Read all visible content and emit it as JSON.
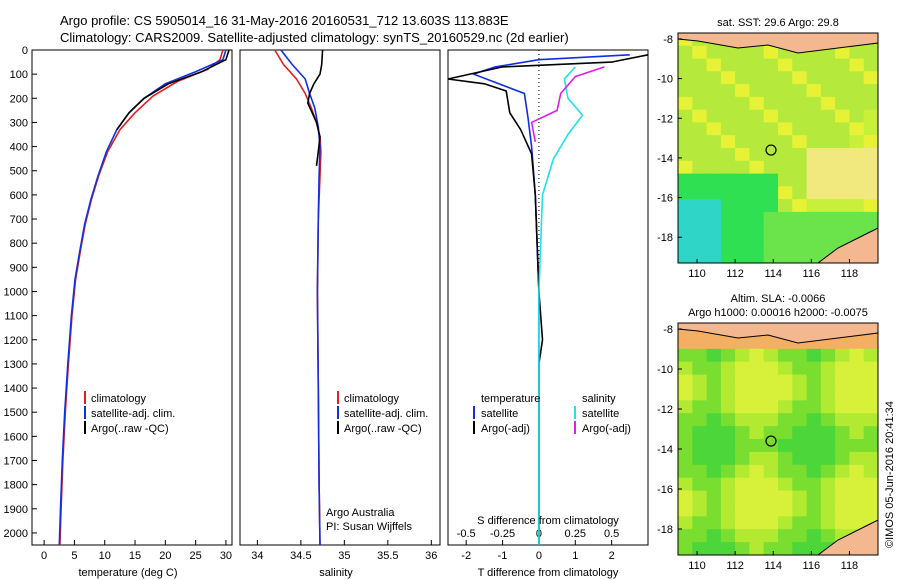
{
  "header": {
    "line1": "Argo profile: CS 5905014_16 31-May-2016 20160531_712 13.603S 113.883E",
    "line2": "Climatology: CARS2009. Satellite-adjusted climatology: synTS_20160529.nc (2d earlier)"
  },
  "colors": {
    "climatology": "#e02020",
    "satellite": "#1030e0",
    "argo": "#000000",
    "sat_s": "#20e0e8",
    "argo_s": "#e020e0"
  },
  "depth_axis": {
    "ticks": [
      "0",
      "100",
      "200",
      "300",
      "400",
      "500",
      "600",
      "700",
      "800",
      "900",
      "1000",
      "1100",
      "1200",
      "1300",
      "1400",
      "1500",
      "1600",
      "1700",
      "1800",
      "1900",
      "2000"
    ]
  },
  "chart_data": [
    {
      "type": "line",
      "name": "temperature",
      "xlabel": "temperature (deg C)",
      "ylabel": "depth",
      "xlim": [
        -2,
        31
      ],
      "ylim": [
        0,
        2050
      ],
      "xticks": [
        0,
        5,
        10,
        15,
        20,
        25,
        30
      ],
      "legend": [
        "climatology",
        "satellite-adj. clim.",
        "Argo(..raw -QC)"
      ],
      "series": [
        {
          "name": "climatology",
          "color": "#e02020",
          "points": [
            [
              29.5,
              0
            ],
            [
              29,
              40
            ],
            [
              27,
              80
            ],
            [
              22,
              130
            ],
            [
              18,
              190
            ],
            [
              15,
              260
            ],
            [
              12.5,
              330
            ],
            [
              10.5,
              420
            ],
            [
              9,
              520
            ],
            [
              7.8,
              620
            ],
            [
              6.8,
              720
            ],
            [
              6,
              830
            ],
            [
              5.2,
              950
            ],
            [
              4.6,
              1100
            ],
            [
              4,
              1300
            ],
            [
              3.5,
              1500
            ],
            [
              3.1,
              1700
            ],
            [
              2.8,
              1900
            ],
            [
              2.6,
              2050
            ]
          ]
        },
        {
          "name": "satellite",
          "color": "#1030e0",
          "points": [
            [
              30,
              0
            ],
            [
              29.5,
              40
            ],
            [
              25,
              90
            ],
            [
              20,
              140
            ],
            [
              16.5,
              200
            ],
            [
              14,
              260
            ],
            [
              12,
              330
            ],
            [
              10.3,
              420
            ],
            [
              8.9,
              520
            ],
            [
              7.7,
              620
            ],
            [
              6.7,
              720
            ],
            [
              5.9,
              830
            ],
            [
              5.1,
              950
            ],
            [
              4.5,
              1100
            ],
            [
              3.9,
              1300
            ],
            [
              3.4,
              1500
            ],
            [
              3,
              1700
            ],
            [
              2.7,
              1900
            ],
            [
              2.5,
              2050
            ]
          ]
        },
        {
          "name": "argo",
          "color": "#000000",
          "points": [
            [
              30.5,
              0
            ],
            [
              30,
              40
            ],
            [
              26,
              90
            ],
            [
              20.5,
              140
            ],
            [
              16.5,
              200
            ],
            [
              14,
              260
            ],
            [
              12,
              330
            ]
          ]
        }
      ]
    },
    {
      "type": "line",
      "name": "salinity",
      "xlabel": "salinity",
      "xlim": [
        33.8,
        36.1
      ],
      "xticks": [
        "34",
        "34.5",
        "35",
        "35.5",
        "36"
      ],
      "legend": [
        "climatology",
        "satellite-adj. clim.",
        "Argo(..raw -QC)"
      ],
      "credit1": "Argo Australia",
      "credit2": "PI: Susan Wijffels",
      "series": [
        {
          "name": "climatology",
          "color": "#e02020",
          "points": [
            [
              34.2,
              0
            ],
            [
              34.3,
              60
            ],
            [
              34.45,
              120
            ],
            [
              34.55,
              180
            ],
            [
              34.62,
              240
            ],
            [
              34.68,
              300
            ],
            [
              34.72,
              360
            ],
            [
              34.73,
              420
            ],
            [
              34.72,
              520
            ],
            [
              34.7,
              700
            ],
            [
              34.69,
              1000
            ],
            [
              34.7,
              1400
            ],
            [
              34.71,
              1800
            ],
            [
              34.72,
              2050
            ]
          ]
        },
        {
          "name": "satellite",
          "color": "#1030e0",
          "points": [
            [
              34.27,
              0
            ],
            [
              34.4,
              60
            ],
            [
              34.55,
              120
            ],
            [
              34.6,
              180
            ],
            [
              34.66,
              240
            ],
            [
              34.7,
              320
            ],
            [
              34.72,
              400
            ],
            [
              34.71,
              520
            ],
            [
              34.7,
              700
            ],
            [
              34.69,
              1000
            ],
            [
              34.7,
              1400
            ],
            [
              34.71,
              1800
            ],
            [
              34.72,
              2050
            ]
          ]
        },
        {
          "name": "argo",
          "color": "#000000",
          "points": [
            [
              34.75,
              0
            ],
            [
              34.74,
              60
            ],
            [
              34.72,
              100
            ],
            [
              34.65,
              140
            ],
            [
              34.6,
              180
            ],
            [
              34.58,
              220
            ],
            [
              34.63,
              260
            ],
            [
              34.68,
              300
            ],
            [
              34.72,
              360
            ],
            [
              34.7,
              420
            ],
            [
              34.68,
              480
            ]
          ]
        }
      ]
    },
    {
      "type": "line",
      "name": "difference",
      "xlabel": "T difference from climatology",
      "xlabel2": "S difference from climatology",
      "xlim": [
        -2.5,
        3
      ],
      "xticks": [
        "-2",
        "-1",
        "0",
        "1",
        "2"
      ],
      "sticks": [
        "-0.5",
        "-0.25",
        "0",
        "0.25",
        "0.5"
      ],
      "legend_t": [
        "temperature",
        "satellite",
        "Argo(-adj)"
      ],
      "legend_s": [
        "salinity",
        "satellite",
        "Argo(-adj)"
      ],
      "series": [
        {
          "name": "T satellite",
          "color": "#1030e0",
          "points": [
            [
              2.5,
              20
            ],
            [
              0,
              40
            ],
            [
              -1.2,
              70
            ],
            [
              -1.8,
              100
            ],
            [
              -0.4,
              180
            ],
            [
              -0.3,
              280
            ],
            [
              -0.2,
              400
            ],
            [
              -0.1,
              600
            ],
            [
              0,
              1000
            ],
            [
              0,
              2050
            ]
          ]
        },
        {
          "name": "T argo",
          "color": "#000000",
          "points": [
            [
              3,
              20
            ],
            [
              2,
              50
            ],
            [
              -1,
              70
            ],
            [
              -2.5,
              120
            ],
            [
              -1.5,
              140
            ],
            [
              -0.9,
              170
            ],
            [
              -0.8,
              260
            ],
            [
              -0.5,
              330
            ],
            [
              -0.2,
              430
            ],
            [
              -0.1,
              600
            ],
            [
              0,
              1000
            ],
            [
              0.1,
              1200
            ],
            [
              0,
              1300
            ],
            [
              0,
              2050
            ]
          ]
        },
        {
          "name": "S satellite",
          "color": "#20e0e8",
          "points": [
            [
              1,
              70
            ],
            [
              0.7,
              120
            ],
            [
              0.8,
              200
            ],
            [
              1.2,
              270
            ],
            [
              0.8,
              350
            ],
            [
              0.4,
              450
            ],
            [
              0.1,
              600
            ],
            [
              0,
              1000
            ],
            [
              0,
              2050
            ]
          ]
        },
        {
          "name": "S argo",
          "color": "#e020e0",
          "points": [
            [
              1.8,
              70
            ],
            [
              1,
              110
            ],
            [
              0.6,
              180
            ],
            [
              0.5,
              250
            ],
            [
              -0.2,
              300
            ],
            [
              -0.1,
              380
            ]
          ]
        }
      ]
    },
    {
      "type": "heatmap",
      "name": "sst_map",
      "title": "sat. SST: 29.6 Argo: 29.8",
      "xticks": [
        "110",
        "112",
        "114",
        "116",
        "118"
      ],
      "yticks": [
        "-8",
        "-10",
        "-12",
        "-14",
        "-16",
        "-18"
      ],
      "xlim": [
        109,
        119.5
      ],
      "ylim": [
        -19.3,
        -7.7
      ],
      "marker": [
        113.883,
        -13.603
      ]
    },
    {
      "type": "heatmap",
      "name": "sla_map",
      "title": "Altim. SLA: -0.0066",
      "subtitle": "Argo h1000: 0.00016 h2000: -0.0075",
      "xticks": [
        "110",
        "112",
        "114",
        "116",
        "118"
      ],
      "yticks": [
        "-8",
        "-10",
        "-12",
        "-14",
        "-16",
        "-18"
      ],
      "xlim": [
        109,
        119.5
      ],
      "ylim": [
        -19.3,
        -7.7
      ],
      "marker": [
        113.883,
        -13.603
      ]
    }
  ],
  "stamp": "©IMOS 05-Jun-2016 20:41:34"
}
